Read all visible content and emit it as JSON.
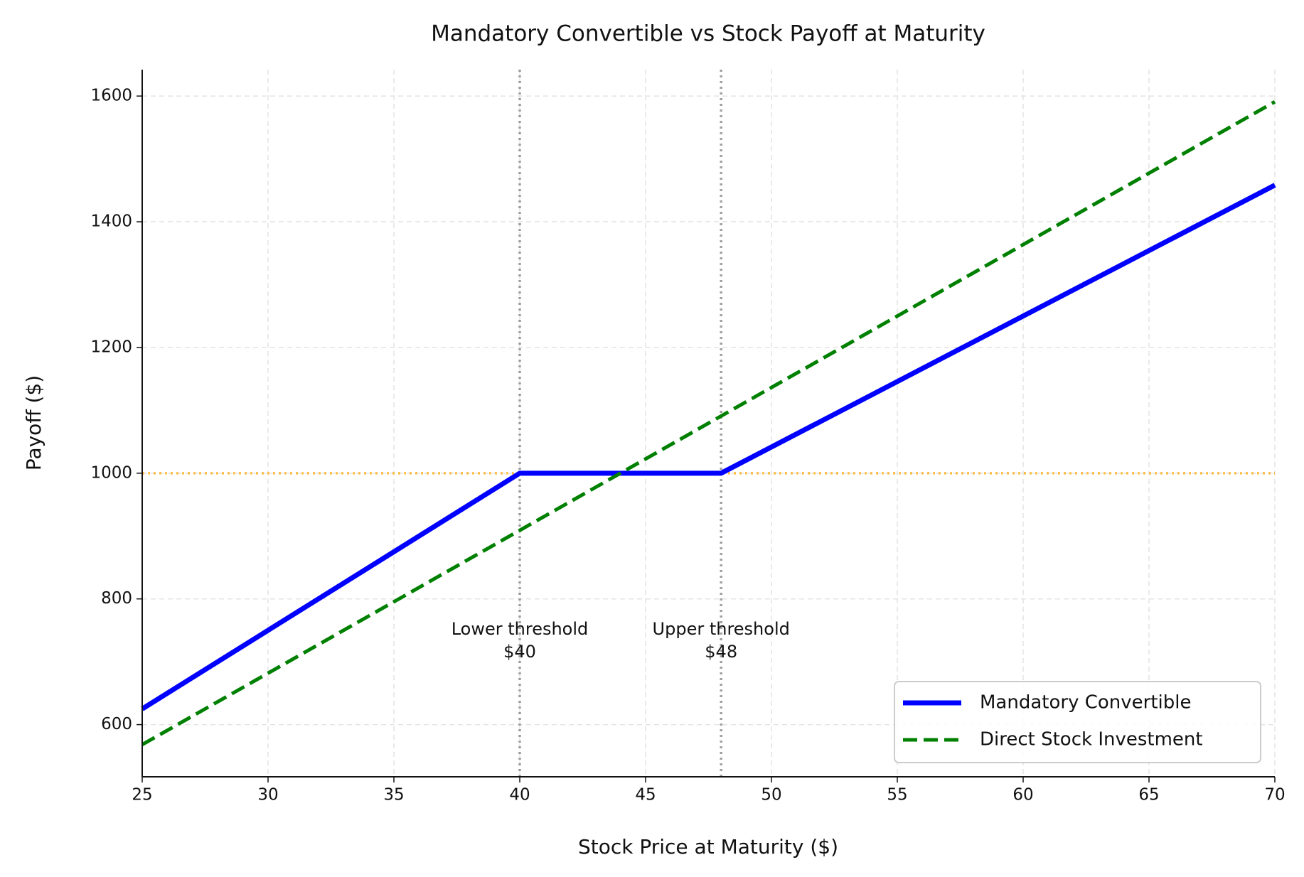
{
  "chart_data": {
    "type": "line",
    "title": "Mandatory Convertible vs Stock Payoff at Maturity",
    "xlabel": "Stock Price at Maturity ($)",
    "ylabel": "Payoff ($)",
    "series": [
      {
        "name": "Mandatory Convertible",
        "color": "blue",
        "style": "solid",
        "x": [
          25,
          40,
          48,
          70
        ],
        "values": [
          625,
          1000,
          1000,
          1458.3
        ]
      },
      {
        "name": "Direct Stock Investment",
        "color": "green",
        "style": "dashed",
        "x": [
          25,
          70
        ],
        "values": [
          568.2,
          1590.9
        ]
      }
    ],
    "hlines": [
      {
        "value": 1000,
        "color": "orange"
      }
    ],
    "vlines": [
      {
        "value": 40,
        "color": "gray"
      },
      {
        "value": 48,
        "color": "gray"
      }
    ],
    "annotations": [
      {
        "text": [
          "Lower threshold",
          "$40"
        ],
        "x": 40,
        "y": 733
      },
      {
        "text": [
          "Upper threshold",
          "$48"
        ],
        "x": 48,
        "y": 733
      }
    ],
    "xlim": [
      25,
      70
    ],
    "xticks": [
      25,
      30,
      35,
      40,
      45,
      50,
      55,
      60,
      65,
      70
    ],
    "ylim": [
      517,
      1642
    ],
    "yticks": [
      600,
      800,
      1000,
      1200,
      1400,
      1600
    ],
    "grid": true,
    "legend": "lower right"
  }
}
